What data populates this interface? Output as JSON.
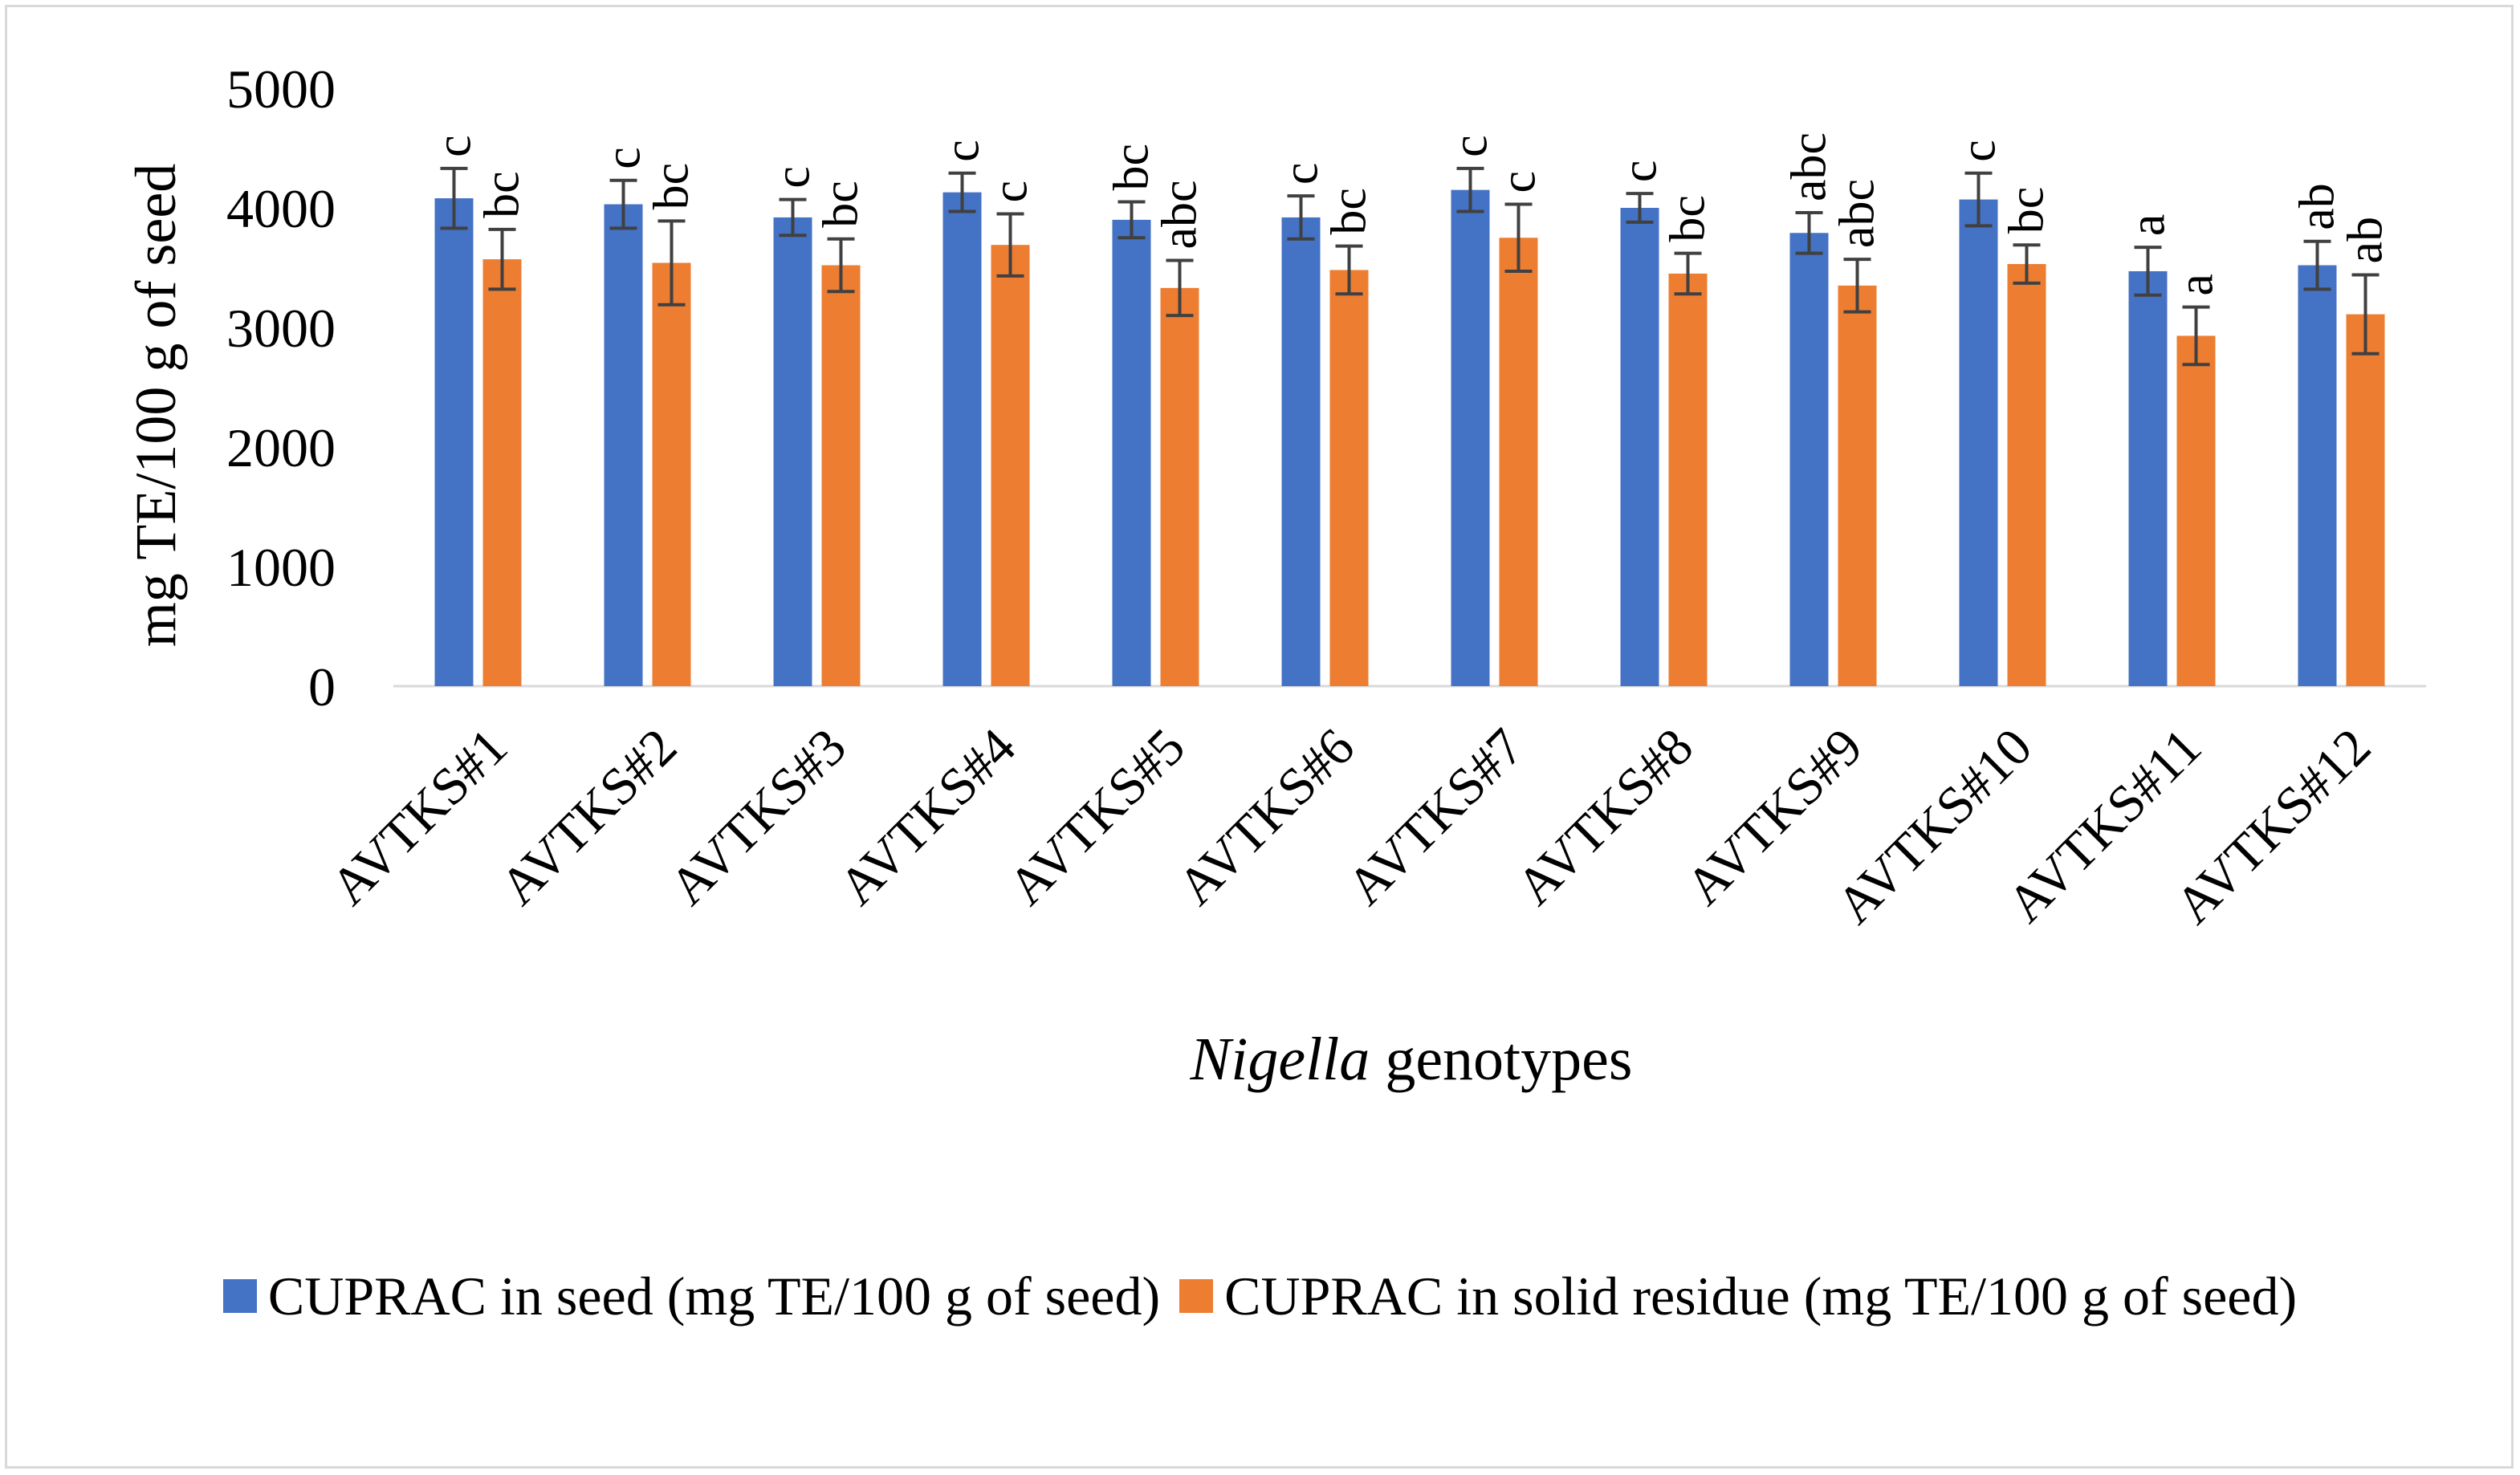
{
  "chart_data": {
    "type": "bar",
    "title": "",
    "ylabel": "mg TE/100 g of seed",
    "xlabel_italic": "Nigella",
    "xlabel_rest": " genotypes",
    "ylim": [
      0,
      5000
    ],
    "yticks": [
      0,
      1000,
      2000,
      3000,
      4000,
      5000
    ],
    "grid": false,
    "legend_position": "bottom",
    "categories": [
      "AVTKS#1",
      "AVTKS#2",
      "AVTKS#3",
      "AVTKS#4",
      "AVTKS#5",
      "AVTKS#6",
      "AVTKS#7",
      "AVTKS#8",
      "AVTKS#9",
      "AVTKS#10",
      "AVTKS#11",
      "AVTKS#12"
    ],
    "series": [
      {
        "name": "CUPRAC in seed (mg TE/100 g of seed)",
        "color": "#4472c4",
        "values": [
          4080,
          4030,
          3920,
          4130,
          3900,
          3920,
          4150,
          4000,
          3790,
          4070,
          3470,
          3520
        ],
        "errors": [
          250,
          200,
          150,
          160,
          150,
          180,
          180,
          120,
          170,
          220,
          200,
          200
        ],
        "letters": [
          "c",
          "c",
          "c",
          "c",
          "bc",
          "c",
          "c",
          "c",
          "abc",
          "c",
          "a",
          "ab"
        ]
      },
      {
        "name": "CUPRAC in solid residue (mg TE/100 g of seed)",
        "color": "#ed7d31",
        "values": [
          3570,
          3540,
          3520,
          3690,
          3330,
          3480,
          3750,
          3450,
          3350,
          3530,
          2930,
          3110
        ],
        "errors": [
          250,
          350,
          220,
          260,
          230,
          200,
          280,
          170,
          220,
          160,
          240,
          330
        ],
        "letters": [
          "bc",
          "bc",
          "bc",
          "c",
          "abc",
          "bc",
          "c",
          "bc",
          "abc",
          "bc",
          "a",
          "ab"
        ]
      }
    ]
  }
}
